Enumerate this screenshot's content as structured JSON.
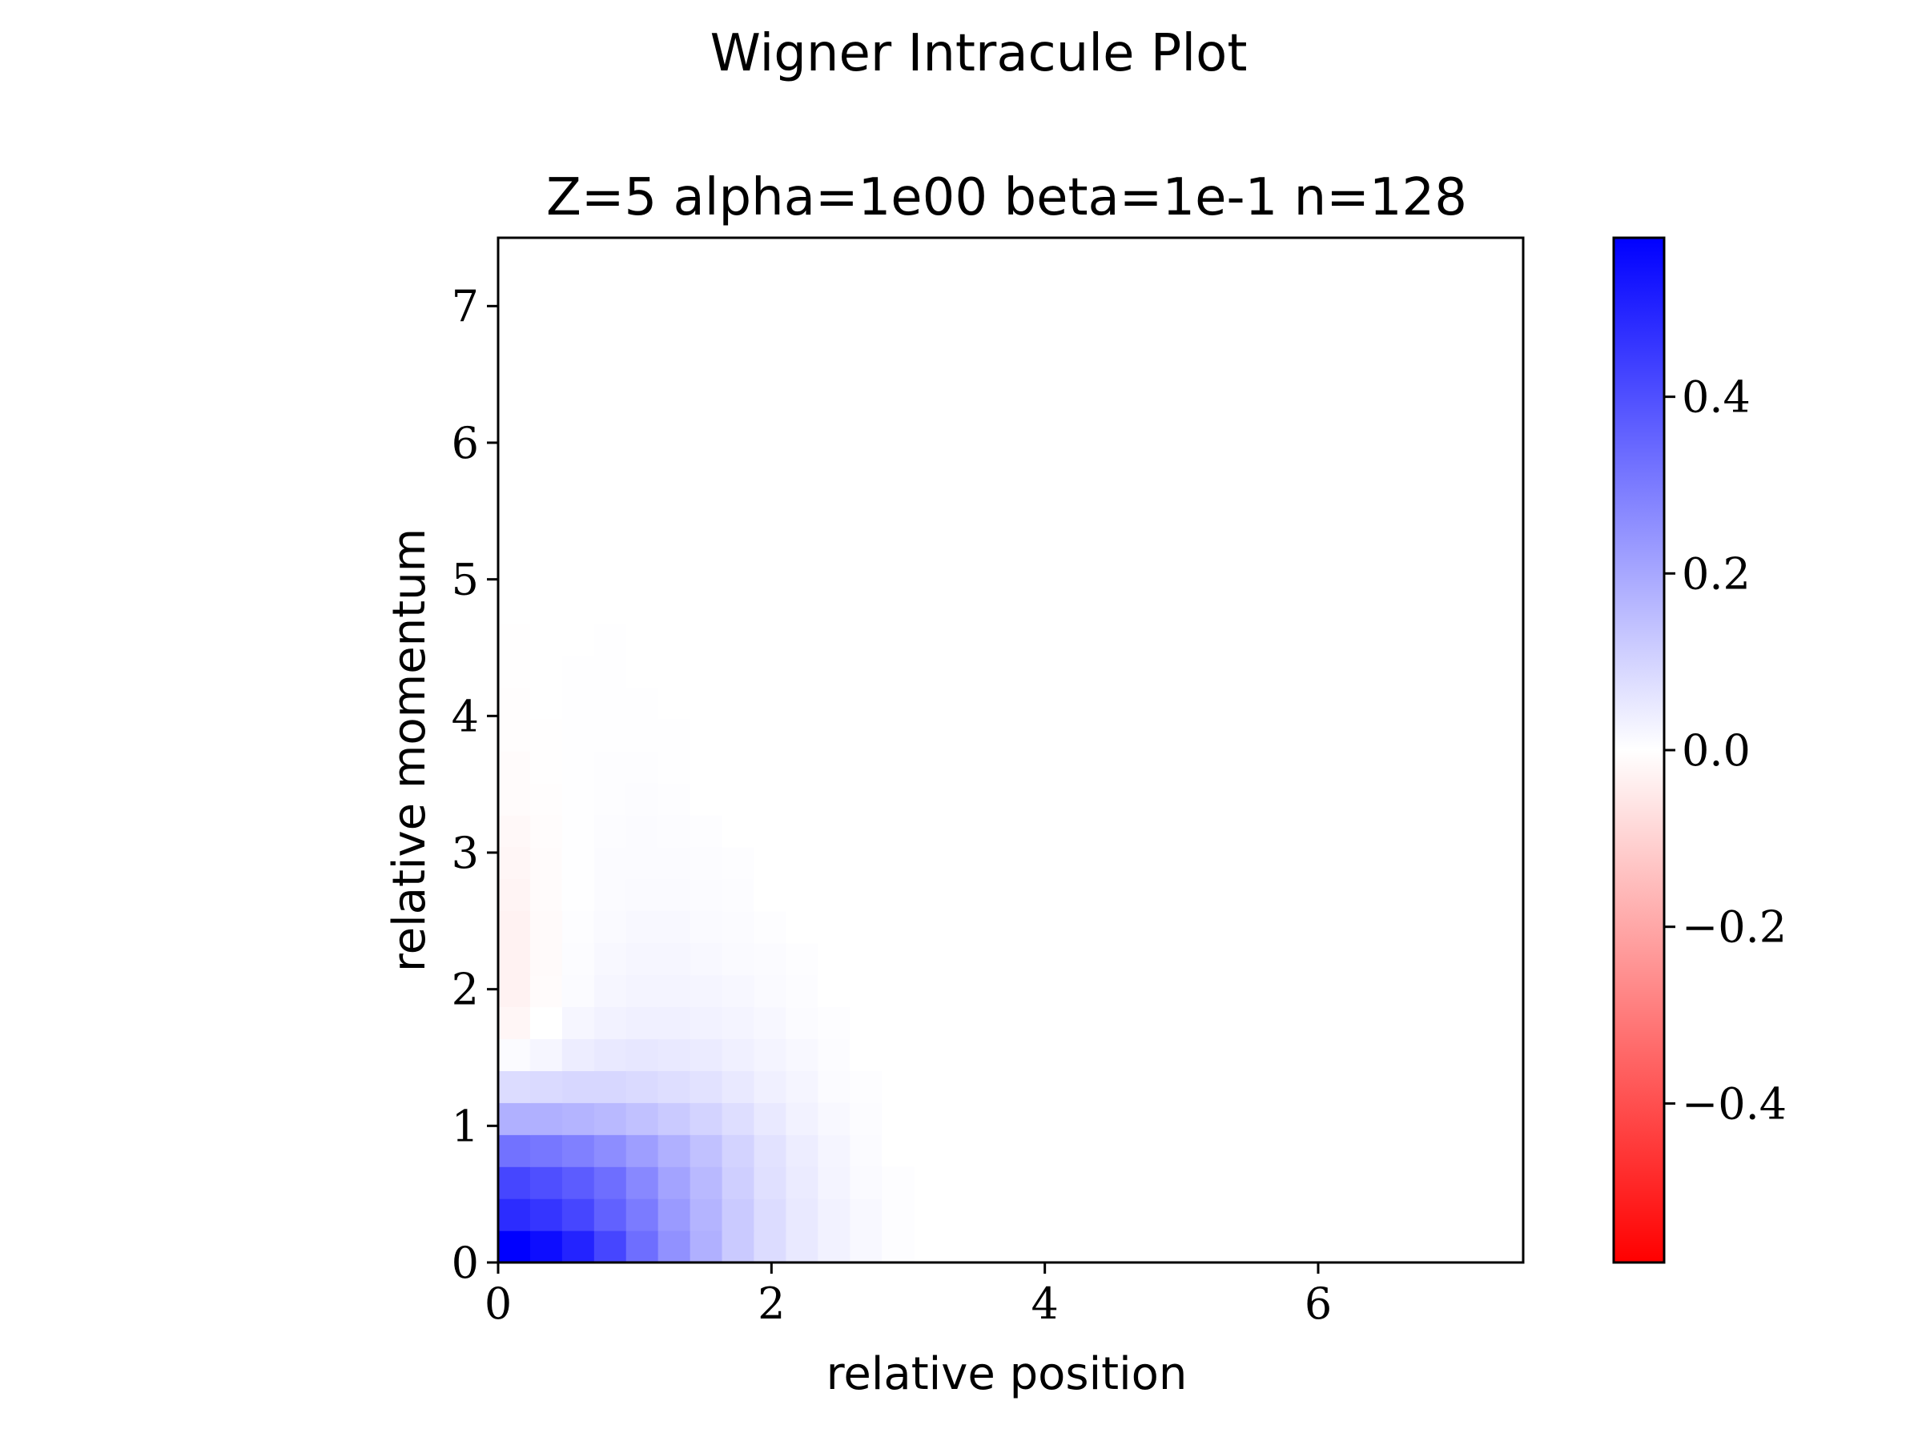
{
  "figure": {
    "suptitle": "Wigner Intracule Plot"
  },
  "chart_data": {
    "type": "heatmap",
    "title": "Z=5 alpha=1e00 beta=1e-1 n=128",
    "xlabel": "relative position",
    "ylabel": "relative momentum",
    "xlim": [
      0,
      7.5
    ],
    "ylim": [
      0,
      7.5
    ],
    "xticks": [
      0,
      2,
      4,
      6
    ],
    "xtick_labels": [
      "0",
      "2",
      "4",
      "6"
    ],
    "yticks": [
      0,
      1,
      2,
      3,
      4,
      5,
      6,
      7
    ],
    "ytick_labels": [
      "0",
      "1",
      "2",
      "3",
      "4",
      "5",
      "6",
      "7"
    ],
    "grid": false,
    "colormap": "bwr_r",
    "vmin": -0.58,
    "vmax": 0.58,
    "cell_size": 0.234,
    "colorbar": {
      "ticks": [
        0.4,
        0.2,
        0.0,
        -0.2,
        -0.4
      ],
      "tick_labels": [
        "0.4",
        "0.2",
        "0.0",
        "−0.2",
        "−0.4"
      ]
    },
    "colors": {
      "positive": "#0000ff",
      "zero": "#ffffff",
      "negative": "#ff0000"
    },
    "rows_description": "values[row][col]; row 0 = lowest momentum cell (0-0.234), col 0 = lowest position cell",
    "values": [
      [
        0.58,
        0.55,
        0.5,
        0.42,
        0.33,
        0.25,
        0.18,
        0.12,
        0.08,
        0.05,
        0.03,
        0.015,
        0.005,
        0.0,
        0.0
      ],
      [
        0.48,
        0.46,
        0.42,
        0.36,
        0.3,
        0.23,
        0.17,
        0.12,
        0.08,
        0.05,
        0.03,
        0.015,
        0.005,
        0.0,
        0.0
      ],
      [
        0.42,
        0.4,
        0.37,
        0.33,
        0.27,
        0.21,
        0.16,
        0.11,
        0.07,
        0.045,
        0.025,
        0.012,
        0.004,
        0.0,
        0.0
      ],
      [
        0.32,
        0.31,
        0.29,
        0.26,
        0.22,
        0.18,
        0.14,
        0.1,
        0.065,
        0.04,
        0.022,
        0.01,
        0.0,
        0.0,
        0.0
      ],
      [
        0.18,
        0.18,
        0.17,
        0.16,
        0.14,
        0.12,
        0.1,
        0.075,
        0.05,
        0.03,
        0.016,
        0.006,
        0.0,
        0.0,
        0.0
      ],
      [
        0.08,
        0.085,
        0.09,
        0.09,
        0.085,
        0.075,
        0.065,
        0.05,
        0.035,
        0.022,
        0.01,
        0.004,
        0.0,
        0.0,
        0.0
      ],
      [
        0.01,
        0.02,
        0.04,
        0.05,
        0.055,
        0.05,
        0.045,
        0.035,
        0.025,
        0.015,
        0.007,
        0.0,
        0.0,
        0.0,
        0.0
      ],
      [
        -0.02,
        0.0,
        0.02,
        0.03,
        0.035,
        0.035,
        0.03,
        0.025,
        0.018,
        0.01,
        0.004,
        0.0,
        0.0,
        0.0,
        0.0
      ],
      [
        -0.03,
        -0.01,
        0.01,
        0.02,
        0.025,
        0.025,
        0.022,
        0.018,
        0.012,
        0.006,
        0.0,
        0.0,
        0.0,
        0.0,
        0.0
      ],
      [
        -0.03,
        -0.012,
        0.006,
        0.015,
        0.02,
        0.02,
        0.016,
        0.012,
        0.008,
        0.004,
        0.0,
        0.0,
        0.0,
        0.0,
        0.0
      ],
      [
        -0.03,
        -0.012,
        0.004,
        0.012,
        0.016,
        0.015,
        0.012,
        0.008,
        0.005,
        0.0,
        0.0,
        0.0,
        0.0,
        0.0,
        0.0
      ],
      [
        -0.025,
        -0.01,
        0.003,
        0.01,
        0.012,
        0.012,
        0.009,
        0.006,
        0.0,
        0.0,
        0.0,
        0.0,
        0.0,
        0.0,
        0.0
      ],
      [
        -0.02,
        -0.008,
        0.002,
        0.008,
        0.01,
        0.009,
        0.006,
        0.004,
        0.0,
        0.0,
        0.0,
        0.0,
        0.0,
        0.0,
        0.0
      ],
      [
        -0.015,
        -0.006,
        0.002,
        0.006,
        0.008,
        0.007,
        0.004,
        0.0,
        0.0,
        0.0,
        0.0,
        0.0,
        0.0,
        0.0,
        0.0
      ],
      [
        -0.01,
        -0.004,
        0.002,
        0.005,
        0.006,
        0.005,
        0.0,
        0.0,
        0.0,
        0.0,
        0.0,
        0.0,
        0.0,
        0.0,
        0.0
      ],
      [
        -0.008,
        -0.003,
        0.002,
        0.004,
        0.004,
        0.003,
        0.0,
        0.0,
        0.0,
        0.0,
        0.0,
        0.0,
        0.0,
        0.0,
        0.0
      ],
      [
        -0.005,
        -0.002,
        0.002,
        0.003,
        0.003,
        0.002,
        0.0,
        0.0,
        0.0,
        0.0,
        0.0,
        0.0,
        0.0,
        0.0,
        0.0
      ],
      [
        -0.004,
        -0.001,
        0.002,
        0.003,
        0.002,
        0.0,
        0.0,
        0.0,
        0.0,
        0.0,
        0.0,
        0.0,
        0.0,
        0.0,
        0.0
      ],
      [
        -0.003,
        0.0,
        0.002,
        0.002,
        0.001,
        0.0,
        0.0,
        0.0,
        0.0,
        0.0,
        0.0,
        0.0,
        0.0,
        0.0,
        0.0
      ],
      [
        -0.002,
        0.0,
        0.001,
        0.002,
        0.0,
        0.0,
        0.0,
        0.0,
        0.0,
        0.0,
        0.0,
        0.0,
        0.0,
        0.0,
        0.0
      ],
      [
        -0.001,
        0.0,
        0.001,
        0.001,
        0.0,
        0.0,
        0.0,
        0.0,
        0.0,
        0.0,
        0.0,
        0.0,
        0.0,
        0.0,
        0.0
      ],
      [
        0.0,
        0.0,
        0.001,
        0.0,
        0.0,
        0.0,
        0.0,
        0.0,
        0.0,
        0.0,
        0.0,
        0.0,
        0.0,
        0.0,
        0.0
      ]
    ]
  }
}
